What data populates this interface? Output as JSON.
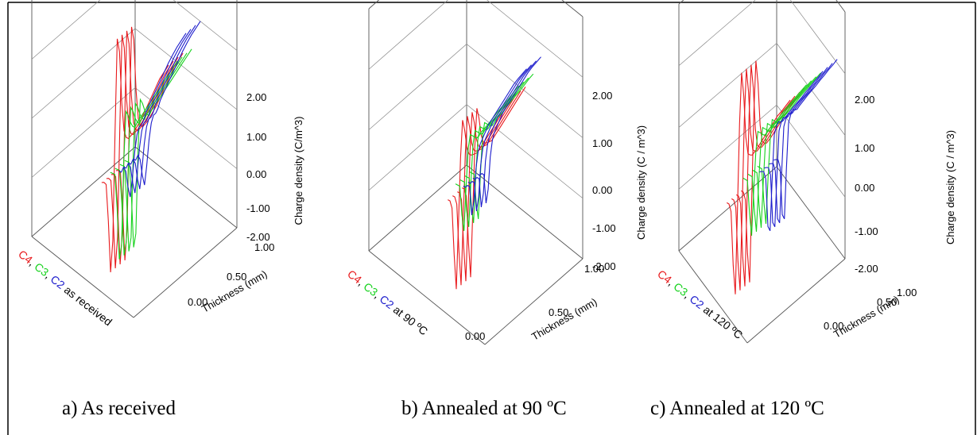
{
  "colors": {
    "C4": "#e8191c",
    "C3": "#17d21e",
    "C2": "#1c1ccc",
    "frame": "#000000"
  },
  "chart_data": [
    {
      "type": "line",
      "panel": "a",
      "caption": "a) As received",
      "zlabel": "Charge density (C/m^3)",
      "xlabel": "Thickness (mm)",
      "zticks": [
        "2.00",
        "1.00",
        "0.00",
        "-1.00",
        "-2.00"
      ],
      "xticks": [
        "0.00",
        "0.50",
        "1.00"
      ],
      "depth_label_parts": [
        {
          "text": "C4",
          "color": "C4"
        },
        {
          "text": ", ",
          "color": "frame"
        },
        {
          "text": "C3",
          "color": "C3"
        },
        {
          "text": ", ",
          "color": "frame"
        },
        {
          "text": "C2",
          "color": "C2"
        },
        {
          "text": " as received",
          "color": "frame"
        }
      ],
      "zlim": [
        -2,
        2
      ],
      "xlim": [
        -0.5,
        1
      ],
      "series": [
        {
          "name": "C4",
          "x": [
            -0.5,
            -0.45,
            -0.4,
            -0.35,
            -0.3,
            -0.25,
            -0.2,
            -0.15,
            -0.1,
            -0.05,
            0.0,
            0.05,
            0.1,
            0.2,
            0.3,
            0.4,
            0.5,
            0.6,
            0.7,
            0.8,
            0.9,
            1.0
          ],
          "values": [
            -0.25,
            -0.28,
            -0.35,
            -1.0,
            -1.9,
            -1.4,
            0.4,
            1.95,
            1.7,
            0.8,
            0.3,
            0.15,
            0.1,
            0.12,
            0.18,
            0.25,
            0.35,
            0.45,
            0.55,
            0.65,
            0.7,
            0.75
          ]
        },
        {
          "name": "C3",
          "x": [
            -0.5,
            -0.45,
            -0.4,
            -0.35,
            -0.3,
            -0.25,
            -0.2,
            -0.15,
            -0.1,
            -0.05,
            0.0,
            0.05,
            0.1,
            0.2,
            0.3,
            0.4,
            0.5,
            0.6,
            0.7,
            0.8,
            0.9,
            1.0
          ],
          "values": [
            -0.5,
            -0.55,
            -0.6,
            -1.2,
            -2.1,
            -1.9,
            -0.5,
            0.3,
            0.2,
            0.05,
            -0.05,
            -0.1,
            -0.05,
            0.0,
            0.05,
            0.1,
            0.15,
            0.2,
            0.25,
            0.3,
            0.35,
            0.4
          ]
        },
        {
          "name": "C2",
          "x": [
            -0.5,
            -0.45,
            -0.4,
            -0.35,
            -0.3,
            -0.25,
            -0.2,
            -0.15,
            -0.1,
            -0.05,
            0.0,
            0.05,
            0.1,
            0.2,
            0.3,
            0.4,
            0.5,
            0.6,
            0.7,
            0.8,
            0.9,
            1.0
          ],
          "values": [
            -0.9,
            -0.95,
            -0.9,
            -1.0,
            -1.3,
            -1.5,
            -1.2,
            -0.8,
            -0.55,
            -0.45,
            -0.45,
            -0.4,
            -0.3,
            -0.2,
            -0.1,
            0.0,
            0.1,
            0.2,
            0.28,
            0.35,
            0.4,
            0.45
          ]
        }
      ]
    },
    {
      "type": "line",
      "panel": "b",
      "caption": "b) Annealed at 90 ºC",
      "zlabel": "Charge density (C / m^3)",
      "xlabel": "Thickness (mm)",
      "zticks": [
        "2.00",
        "1.00",
        "0.00",
        "-1.00",
        "-2.00"
      ],
      "xticks": [
        "0.00",
        "0.50",
        "1.00"
      ],
      "depth_label_parts": [
        {
          "text": "C4",
          "color": "C4"
        },
        {
          "text": ", ",
          "color": "frame"
        },
        {
          "text": "C3",
          "color": "C3"
        },
        {
          "text": ", ",
          "color": "frame"
        },
        {
          "text": "C2",
          "color": "C2"
        },
        {
          "text": " at 90 ºC",
          "color": "frame"
        }
      ],
      "zlim": [
        -2,
        2
      ],
      "xlim": [
        -0.5,
        1
      ],
      "series": [
        {
          "name": "C4",
          "x": [
            -0.5,
            -0.45,
            -0.4,
            -0.35,
            -0.3,
            -0.25,
            -0.2,
            -0.15,
            -0.1,
            -0.05,
            0.0,
            0.05,
            0.1,
            0.2,
            0.3,
            0.4,
            0.5,
            0.6,
            0.7,
            0.8,
            0.9,
            1.0
          ],
          "values": [
            -0.2,
            -0.25,
            -0.4,
            -1.2,
            -1.8,
            -0.8,
            0.3,
            0.9,
            0.7,
            0.4,
            0.25,
            0.2,
            0.18,
            0.15,
            0.2,
            0.25,
            0.3,
            0.35,
            0.4,
            0.45,
            0.5,
            0.55
          ]
        },
        {
          "name": "C3",
          "x": [
            -0.5,
            -0.45,
            -0.4,
            -0.35,
            -0.3,
            -0.25,
            -0.2,
            -0.15,
            -0.1,
            -0.05,
            0.0,
            0.05,
            0.1,
            0.2,
            0.3,
            0.4,
            0.5,
            0.6,
            0.7,
            0.8,
            0.9,
            1.0
          ],
          "values": [
            -0.4,
            -0.45,
            -0.5,
            -1.0,
            -1.3,
            -0.6,
            0.0,
            0.2,
            0.15,
            0.1,
            0.05,
            0.05,
            0.08,
            0.1,
            0.12,
            0.15,
            0.18,
            0.2,
            0.22,
            0.25,
            0.28,
            0.3
          ]
        },
        {
          "name": "C2",
          "x": [
            -0.5,
            -0.45,
            -0.4,
            -0.35,
            -0.3,
            -0.25,
            -0.2,
            -0.15,
            -0.1,
            -0.05,
            0.0,
            0.05,
            0.1,
            0.2,
            0.3,
            0.4,
            0.5,
            0.6,
            0.7,
            0.8,
            0.9,
            1.0
          ],
          "values": [
            -0.9,
            -0.95,
            -0.95,
            -1.0,
            -1.5,
            -1.3,
            -0.8,
            -0.55,
            -0.45,
            -0.4,
            -0.35,
            -0.3,
            -0.25,
            -0.2,
            -0.15,
            -0.1,
            -0.05,
            0.0,
            0.05,
            0.08,
            0.1,
            0.12
          ]
        }
      ]
    },
    {
      "type": "line",
      "panel": "c",
      "caption": "c) Annealed at 120 ºC",
      "zlabel": "Charge density (C / m^3)",
      "xlabel": "Thickness (mm)",
      "zticks": [
        "2.00",
        "1.00",
        "0.00",
        "-1.00",
        "-2.00"
      ],
      "xticks": [
        "0.00",
        "0.50",
        "1.00"
      ],
      "depth_label_parts": [
        {
          "text": "C4",
          "color": "C4"
        },
        {
          "text": ", ",
          "color": "frame"
        },
        {
          "text": "C3",
          "color": "C3"
        },
        {
          "text": ", ",
          "color": "frame"
        },
        {
          "text": "C2",
          "color": "C2"
        },
        {
          "text": " at 120 ºC",
          "color": "frame"
        }
      ],
      "zlim": [
        -2,
        2
      ],
      "xlim": [
        -0.5,
        1
      ],
      "series": [
        {
          "name": "C4",
          "x": [
            -0.5,
            -0.45,
            -0.4,
            -0.35,
            -0.3,
            -0.25,
            -0.2,
            -0.15,
            -0.1,
            -0.05,
            0.0,
            0.05,
            0.1,
            0.2,
            0.3,
            0.4,
            0.5,
            0.6,
            0.7,
            0.8,
            0.9,
            1.0
          ],
          "values": [
            -0.3,
            -0.35,
            -0.5,
            -1.4,
            -1.9,
            -0.6,
            0.8,
            1.6,
            1.2,
            0.5,
            0.2,
            0.15,
            0.12,
            0.15,
            0.2,
            0.25,
            0.3,
            0.35,
            0.4,
            0.42,
            0.45,
            0.48
          ]
        },
        {
          "name": "C3",
          "x": [
            -0.5,
            -0.45,
            -0.4,
            -0.35,
            -0.3,
            -0.25,
            -0.2,
            -0.15,
            -0.1,
            -0.05,
            0.0,
            0.05,
            0.1,
            0.2,
            0.3,
            0.4,
            0.5,
            0.6,
            0.7,
            0.8,
            0.9,
            1.0
          ],
          "values": [
            -0.35,
            -0.4,
            -0.45,
            -1.0,
            -1.4,
            -0.7,
            -0.1,
            0.2,
            0.15,
            0.1,
            0.05,
            0.05,
            0.08,
            0.1,
            0.12,
            0.15,
            0.18,
            0.2,
            0.22,
            0.24,
            0.26,
            0.28
          ]
        },
        {
          "name": "C2",
          "x": [
            -0.5,
            -0.45,
            -0.4,
            -0.35,
            -0.3,
            -0.25,
            -0.2,
            -0.15,
            -0.1,
            -0.05,
            0.0,
            0.05,
            0.1,
            0.2,
            0.3,
            0.4,
            0.5,
            0.6,
            0.7,
            0.8,
            0.9,
            1.0
          ],
          "values": [
            -0.7,
            -0.72,
            -0.75,
            -0.9,
            -1.7,
            -1.8,
            -1.0,
            -0.3,
            -0.2,
            -0.15,
            -0.18,
            -0.2,
            -0.18,
            -0.15,
            -0.12,
            -0.1,
            -0.08,
            -0.05,
            -0.03,
            0.0,
            0.02,
            0.05
          ]
        }
      ]
    }
  ]
}
